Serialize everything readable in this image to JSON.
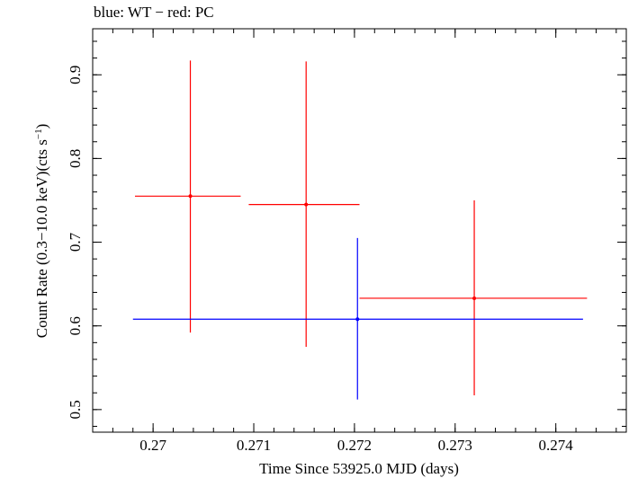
{
  "chart_data": {
    "type": "scatter",
    "title": "blue: WT − red: PC",
    "xlabel": "Time Since 53925.0 MJD (days)",
    "ylabel_main": "Count Rate (0.3−10.0 keV)(cts s",
    "ylabel_sup": "−1",
    "ylabel_end": ")",
    "xlim": [
      0.2694,
      0.2747
    ],
    "ylim": [
      0.473,
      0.955
    ],
    "x_ticks": [
      {
        "value": 0.27,
        "label": "0.27"
      },
      {
        "value": 0.271,
        "label": "0.271"
      },
      {
        "value": 0.272,
        "label": "0.272"
      },
      {
        "value": 0.273,
        "label": "0.273"
      },
      {
        "value": 0.274,
        "label": "0.274"
      }
    ],
    "y_ticks": [
      {
        "value": 0.5,
        "label": "0.5"
      },
      {
        "value": 0.6,
        "label": "0.6"
      },
      {
        "value": 0.7,
        "label": "0.7"
      },
      {
        "value": 0.8,
        "label": "0.8"
      },
      {
        "value": 0.9,
        "label": "0.9"
      }
    ],
    "x_minor_step": 0.0002,
    "y_minor_step": 0.02,
    "grid": false,
    "series": [
      {
        "color": "#ff0000",
        "points": [
          {
            "x": 0.27037,
            "y": 0.755,
            "xmin": 0.26982,
            "xmax": 0.27087,
            "ymin": 0.592,
            "ymax": 0.917
          },
          {
            "x": 0.27152,
            "y": 0.745,
            "xmin": 0.27095,
            "xmax": 0.27205,
            "ymin": 0.575,
            "ymax": 0.916
          },
          {
            "x": 0.27319,
            "y": 0.633,
            "xmin": 0.27205,
            "xmax": 0.27431,
            "ymin": 0.517,
            "ymax": 0.75
          }
        ]
      },
      {
        "color": "#0000ff",
        "points": [
          {
            "x": 0.27203,
            "y": 0.608,
            "xmin": 0.2698,
            "xmax": 0.27427,
            "ymin": 0.512,
            "ymax": 0.705
          }
        ]
      }
    ]
  }
}
